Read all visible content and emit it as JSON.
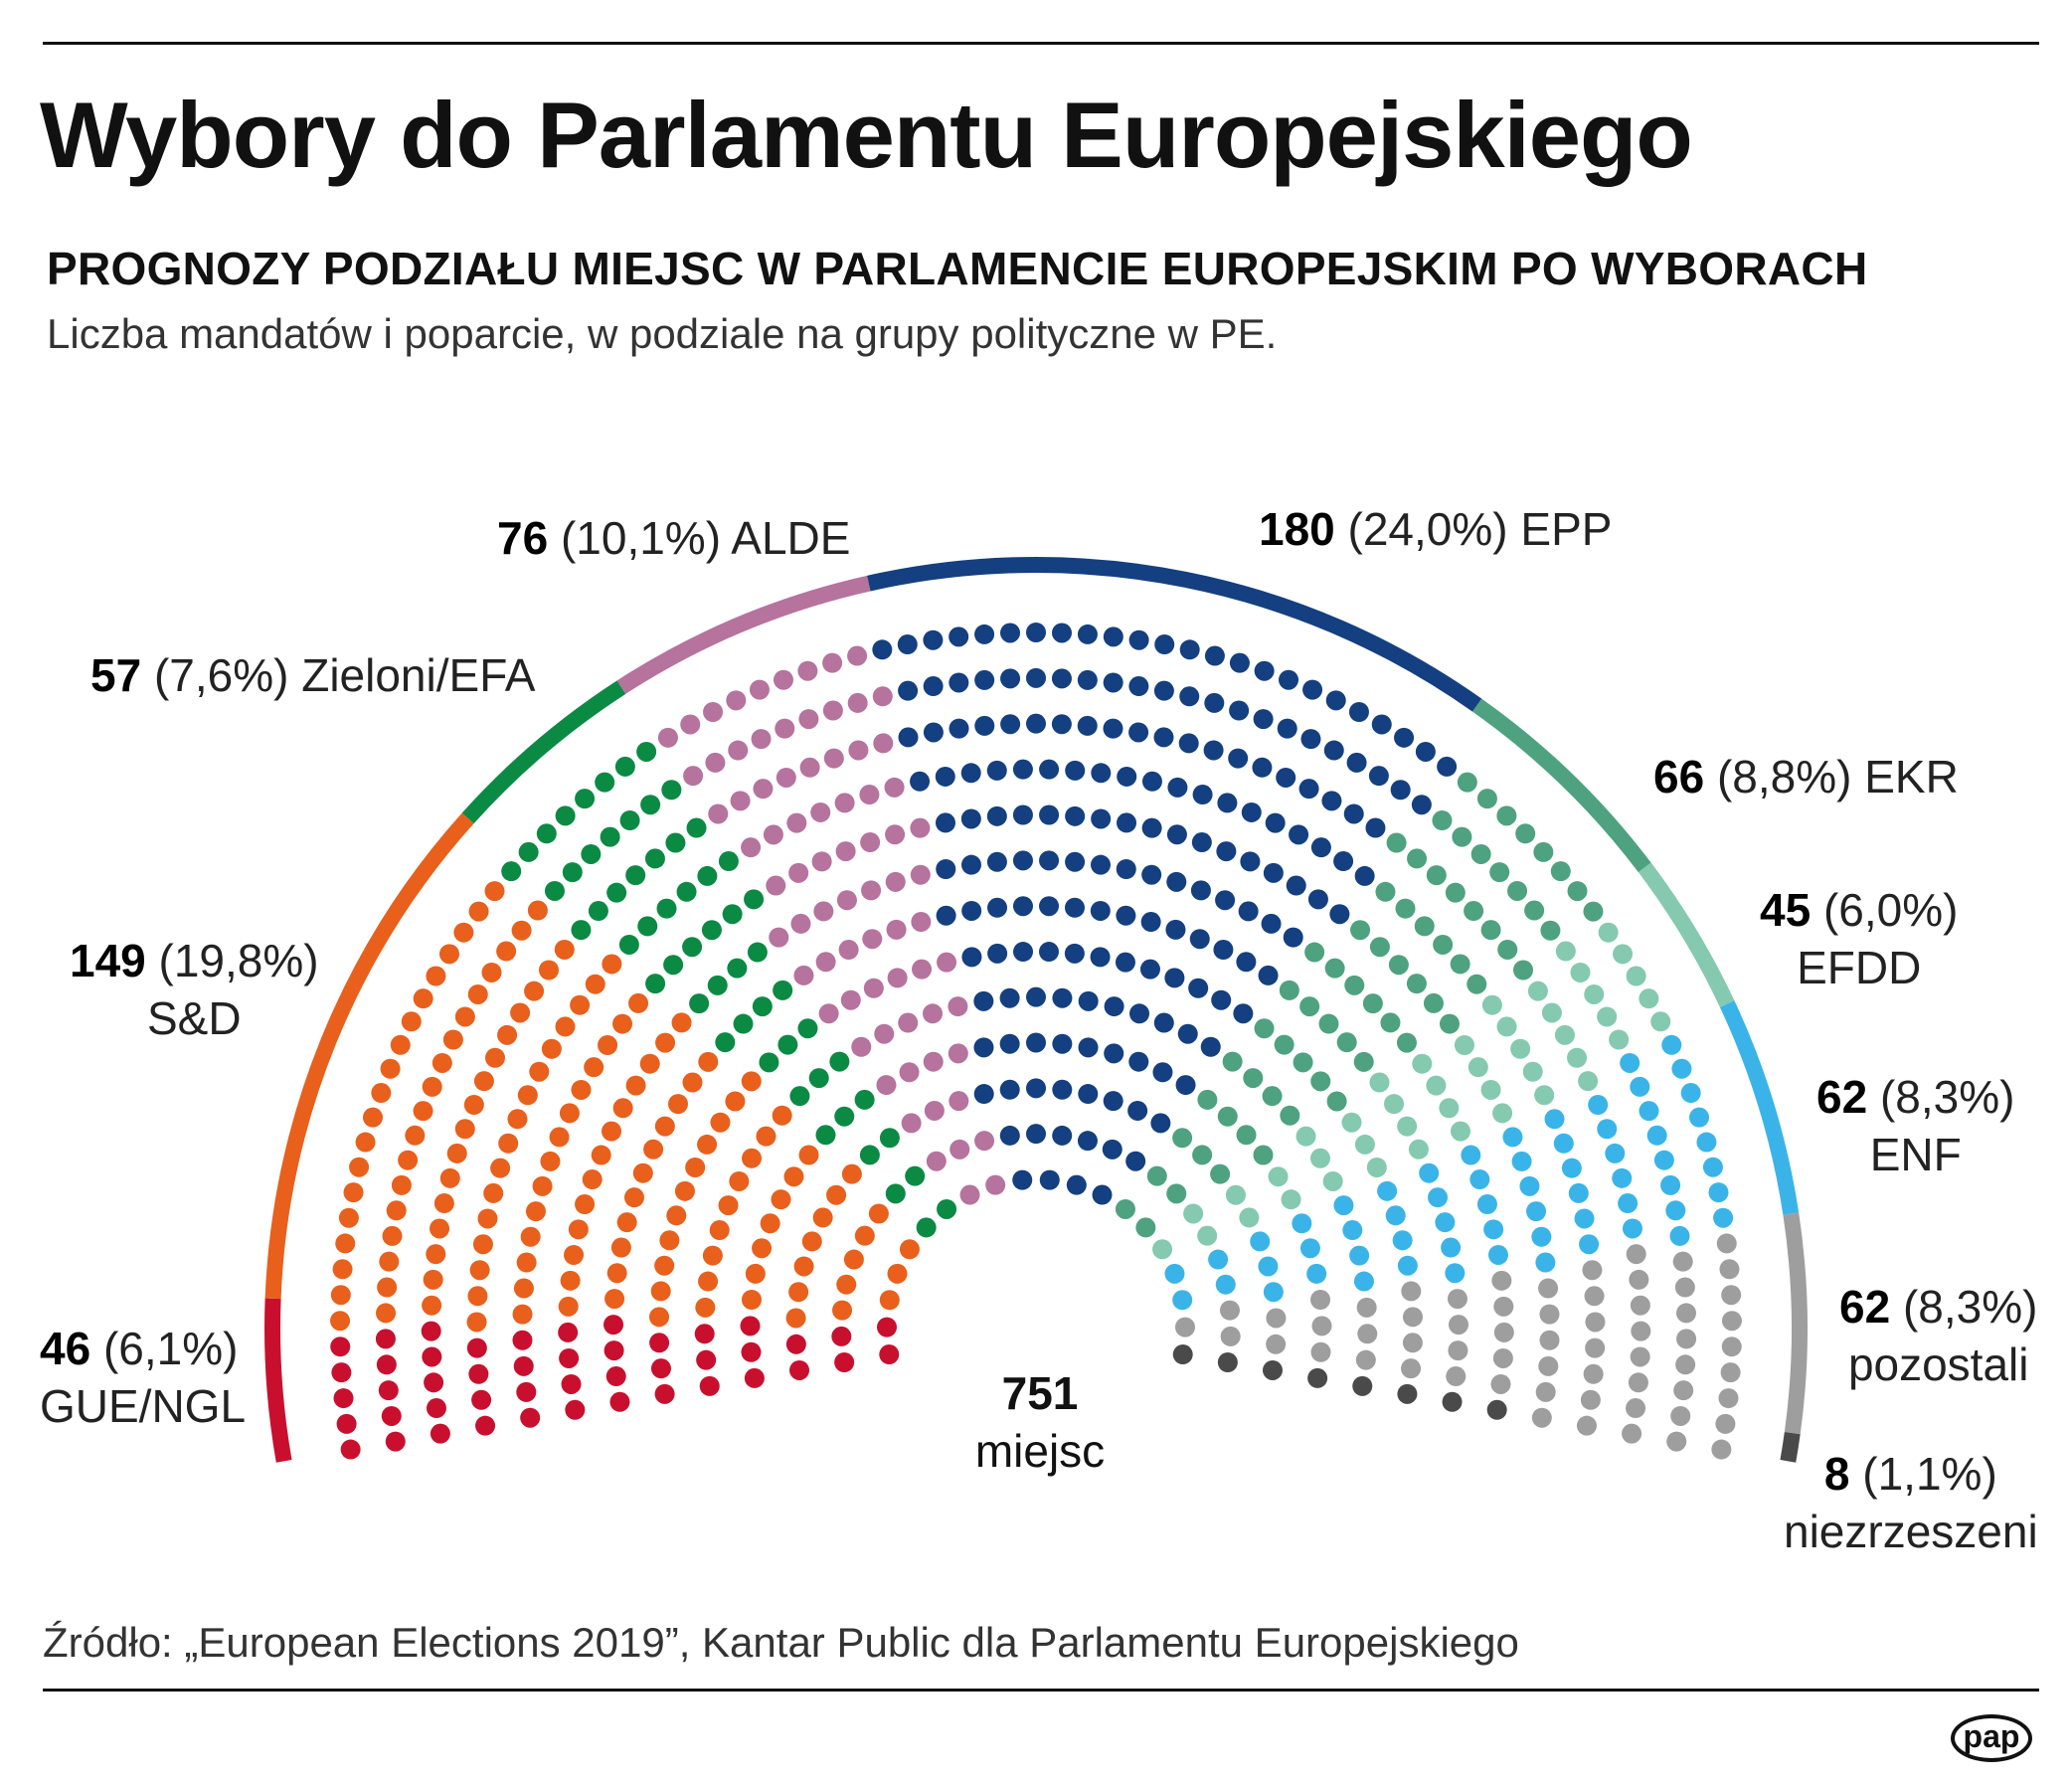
{
  "title": "Wybory do Parlamentu Europejskiego",
  "subtitle": "PROGNOZY PODZIAŁU MIEJSC W PARLAMENCIE EUROPEJSKIM PO WYBORACH",
  "description": "Liczba mandatów i poparcie, w podziale na grupy polityczne w PE.",
  "source": "Źródło: „European Elections 2019”, Kantar Public dla Parlamentu Europejskiego",
  "logo": "pap",
  "total": {
    "value": "751",
    "label": "miejsc"
  },
  "chart_data": {
    "type": "hemicycle",
    "title": "PROGNOZY PODZIAŁU MIEJSC W PARLAMENCIE EUROPEJSKIM PO WYBORACH",
    "total_seats": 751,
    "series": [
      {
        "name": "GUE/NGL",
        "seats": 46,
        "seats_label": "46",
        "share": "(6,1%)",
        "color": "#c8102e"
      },
      {
        "name": "S&D",
        "seats": 149,
        "seats_label": "149",
        "share": "(19,8%)",
        "color": "#e8601c"
      },
      {
        "name": "Zieloni/EFA",
        "seats": 57,
        "seats_label": "57",
        "share": "(7,6%)",
        "color": "#0b8a44"
      },
      {
        "name": "ALDE",
        "seats": 76,
        "seats_label": "76",
        "share": "(10,1%)",
        "color": "#b5739d"
      },
      {
        "name": "EPP",
        "seats": 180,
        "seats_label": "180",
        "share": "(24,0%)",
        "color": "#143f80"
      },
      {
        "name": "EKR",
        "seats": 66,
        "seats_label": "66",
        "share": "(8,8%)",
        "color": "#4ea27f"
      },
      {
        "name": "EFDD",
        "seats": 45,
        "seats_label": "45",
        "share": "(6,0%)",
        "color": "#84c9b0"
      },
      {
        "name": "ENF",
        "seats": 62,
        "seats_label": "62",
        "share": "(8,3%)",
        "color": "#3ab4e8"
      },
      {
        "name": "pozostali",
        "seats": 62,
        "seats_label": "62",
        "share": "(8,3%)",
        "color": "#9e9e9e"
      },
      {
        "name": "niezrzeszeni",
        "seats": 8,
        "seats_label": "8",
        "share": "(1,1%)",
        "color": "#4a4a4a"
      }
    ]
  }
}
